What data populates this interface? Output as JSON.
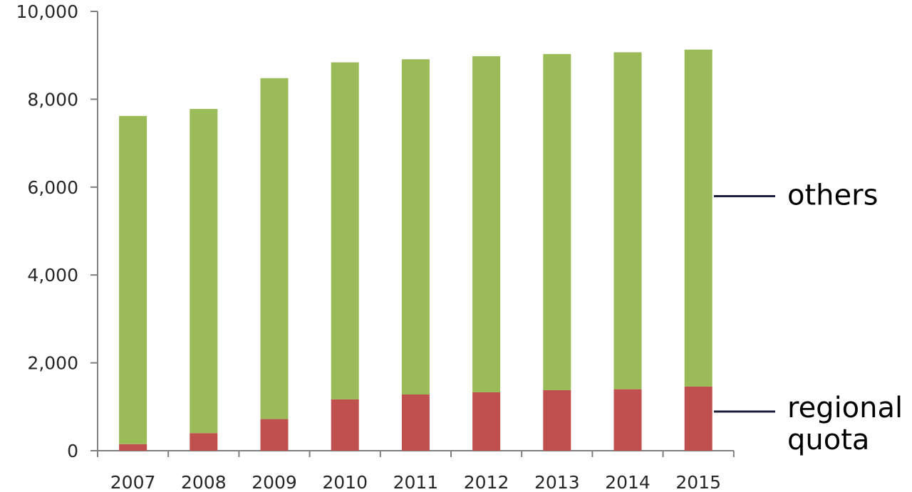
{
  "chart_data": {
    "type": "bar",
    "stacked": true,
    "categories": [
      "2007",
      "2008",
      "2009",
      "2010",
      "2011",
      "2012",
      "2013",
      "2014",
      "2015"
    ],
    "series": [
      {
        "name": "regional quota",
        "label_lines": [
          "regional",
          "quota"
        ],
        "color": "#c0504d",
        "values": [
          150,
          400,
          720,
          1170,
          1280,
          1330,
          1380,
          1400,
          1460
        ]
      },
      {
        "name": "others",
        "label_lines": [
          "others"
        ],
        "color": "#9bbb59",
        "values": [
          7470,
          7380,
          7760,
          7670,
          7630,
          7650,
          7650,
          7670,
          7670
        ]
      }
    ],
    "ylim": [
      0,
      10000
    ],
    "yticks": [
      0,
      2000,
      4000,
      6000,
      8000,
      10000
    ],
    "ytick_labels": [
      "0",
      "2,000",
      "4,000",
      "6,000",
      "8,000",
      "10,000"
    ],
    "title": "",
    "xlabel": "",
    "ylabel": "",
    "grid": false,
    "legend": "right, inline labels beside the last bar"
  }
}
